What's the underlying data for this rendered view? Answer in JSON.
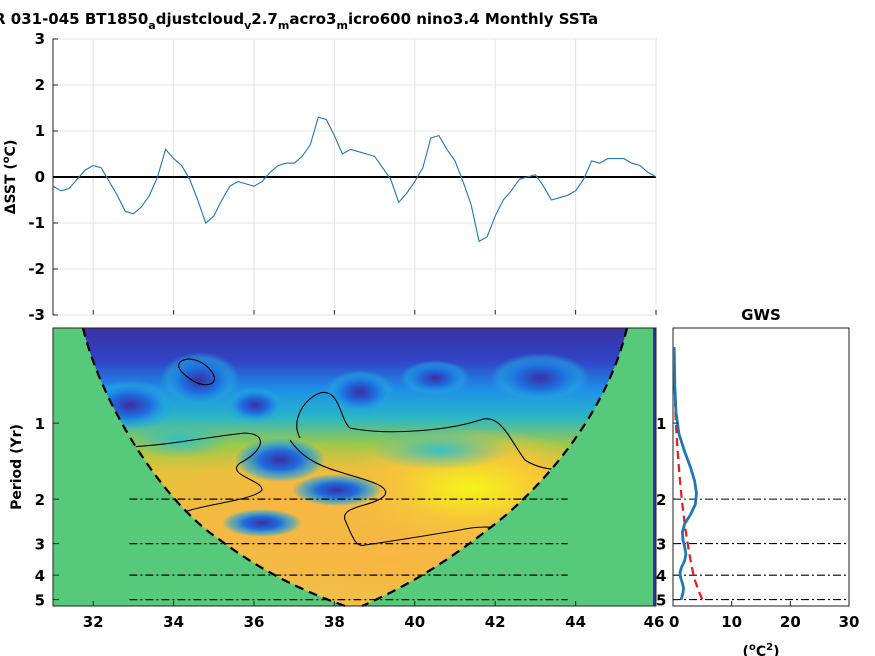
{
  "title_main": "R 031-045 BT1850",
  "title_sub1": "a",
  "title_part2": "djustcloud",
  "title_sub2": "v",
  "title_part3": "2.7",
  "title_sub3": "m",
  "title_part4": "acro3",
  "title_sub4": "m",
  "title_part5": "icro600 nino3.4 Monthly SSTa",
  "colors": {
    "series_line": "#1f77b4",
    "zero_line": "#000000",
    "coi_fill": "#57c97a",
    "gws_line": "#1f77b4",
    "signif_line": "#e41a1c",
    "power_low": "#3b2fa3",
    "power_high": "#f5f519"
  },
  "chart_data": [
    {
      "type": "line",
      "panel": "timeseries",
      "ylabel": "ΔSST (°C)",
      "ylabel_main": "ΔSST (",
      "ylabel_unit": "o",
      "ylabel_end": "C)",
      "xlim": [
        31,
        46
      ],
      "ylim": [
        -3,
        3
      ],
      "grid": true,
      "x_ticks": [
        32,
        34,
        36,
        38,
        40,
        42,
        44,
        46
      ],
      "y_ticks": [
        -3,
        -2,
        -1,
        0,
        1,
        2,
        3
      ],
      "y_tick_labels": [
        "-3",
        "-2",
        "-1",
        "0",
        "1",
        "2",
        "3"
      ],
      "series": [
        {
          "x": [
            31.0,
            31.2,
            31.4,
            31.6,
            31.8,
            32.0,
            32.2,
            32.4,
            32.6,
            32.8,
            33.0,
            33.2,
            33.4,
            33.6,
            33.8,
            34.0,
            34.2,
            34.4,
            34.6,
            34.8,
            35.0,
            35.2,
            35.4,
            35.6,
            35.8,
            36.0,
            36.2,
            36.4,
            36.6,
            36.8,
            37.0,
            37.2,
            37.4,
            37.6,
            37.8,
            38.0,
            38.2,
            38.4,
            38.6,
            38.8,
            39.0,
            39.2,
            39.4,
            39.6,
            39.8,
            40.0,
            40.2,
            40.4,
            40.6,
            40.8,
            41.0,
            41.2,
            41.4,
            41.6,
            41.8,
            42.0,
            42.2,
            42.4,
            42.6,
            42.8,
            43.0,
            43.2,
            43.4,
            43.6,
            43.8,
            44.0,
            44.2,
            44.4,
            44.6,
            44.8,
            45.0,
            45.2,
            45.4,
            45.6,
            45.8,
            46.0
          ],
          "values": [
            -0.2,
            -0.3,
            -0.25,
            -0.05,
            0.15,
            0.25,
            0.2,
            -0.1,
            -0.4,
            -0.75,
            -0.8,
            -0.65,
            -0.4,
            0.0,
            0.6,
            0.4,
            0.25,
            -0.05,
            -0.5,
            -1.0,
            -0.85,
            -0.5,
            -0.2,
            -0.1,
            -0.15,
            -0.2,
            -0.1,
            0.1,
            0.25,
            0.3,
            0.3,
            0.45,
            0.7,
            1.3,
            1.25,
            0.9,
            0.5,
            0.6,
            0.55,
            0.5,
            0.45,
            0.2,
            -0.05,
            -0.55,
            -0.35,
            -0.1,
            0.2,
            0.85,
            0.9,
            0.6,
            0.35,
            -0.1,
            -0.6,
            -1.4,
            -1.3,
            -0.85,
            -0.5,
            -0.3,
            -0.05,
            0.0,
            0.05,
            -0.2,
            -0.5,
            -0.45,
            -0.4,
            -0.3,
            -0.05,
            0.35,
            0.3,
            0.4,
            0.4,
            0.4,
            0.3,
            0.25,
            0.1,
            0.0
          ]
        }
      ]
    },
    {
      "type": "heatmap",
      "panel": "wavelet-power",
      "ylabel": "Period (Yr)",
      "xlim": [
        31,
        46
      ],
      "y_scale": "log",
      "y_ticks": [
        1,
        2,
        3,
        4,
        5
      ],
      "y_tick_labels": [
        "1",
        "2",
        "3",
        "4",
        "5"
      ],
      "x_ticks": [
        32,
        34,
        36,
        38,
        40,
        42,
        44,
        46
      ],
      "x_tick_labels": [
        "32",
        "34",
        "36",
        "38",
        "40",
        "42",
        "44",
        "46"
      ],
      "reference_periods": [
        2,
        3,
        4,
        5
      ],
      "cone_of_influence": "dashed",
      "significance_contours": "solid black",
      "power_hotspot_period_range": [
        1.3,
        3.2
      ],
      "power_hotspot_time_range": [
        33.5,
        43.5
      ]
    },
    {
      "type": "line",
      "panel": "global-wavelet-spectrum",
      "title": "GWS",
      "xlabel": "(°C²)",
      "xlabel_main": "(",
      "xlabel_unit": "o",
      "xlabel_unit2": "C",
      "xlabel_sup": "2",
      "xlabel_end": ")",
      "xlim": [
        0,
        30
      ],
      "x_ticks": [
        0,
        10,
        20,
        30
      ],
      "x_tick_labels": [
        "0",
        "10",
        "20",
        "30"
      ],
      "y_scale": "log",
      "y_ticks": [
        1,
        2,
        3,
        4,
        5
      ],
      "y_tick_labels": [
        "1",
        "2",
        "3",
        "4",
        "5"
      ],
      "series": [
        {
          "style": "solid",
          "period": [
            0.5,
            0.7,
            0.9,
            1.1,
            1.3,
            1.5,
            1.7,
            1.9,
            2.1,
            2.3,
            2.5,
            2.7,
            2.9,
            3.1,
            3.3,
            3.5,
            3.7,
            3.9,
            4.1,
            4.3,
            4.5,
            4.7,
            5.0
          ],
          "power": [
            0.2,
            0.3,
            0.5,
            1.0,
            2.0,
            3.0,
            3.7,
            4.0,
            3.8,
            3.0,
            2.0,
            1.6,
            1.7,
            2.0,
            2.2,
            2.0,
            1.5,
            1.2,
            1.3,
            1.6,
            1.8,
            1.7,
            1.4
          ]
        },
        {
          "style": "dashed",
          "period": [
            0.5,
            0.7,
            0.9,
            1.1,
            1.3,
            1.5,
            1.7,
            1.9,
            2.1,
            2.3,
            2.5,
            2.7,
            2.9,
            3.1,
            3.3,
            3.5,
            3.7,
            3.9,
            4.1,
            4.3,
            4.5,
            4.7,
            5.0
          ],
          "power": [
            0.2,
            0.3,
            0.4,
            0.6,
            0.8,
            1.0,
            1.2,
            1.4,
            1.6,
            1.8,
            2.0,
            2.2,
            2.4,
            2.6,
            2.8,
            3.0,
            3.2,
            3.4,
            3.6,
            3.9,
            4.2,
            4.5,
            5.0
          ]
        }
      ]
    }
  ]
}
